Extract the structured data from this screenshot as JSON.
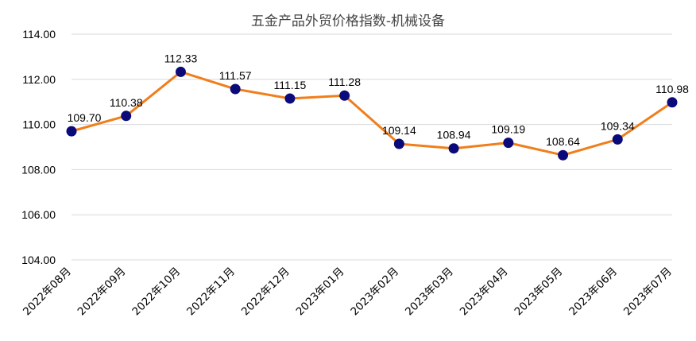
{
  "chart_data": {
    "type": "line",
    "title": "五金产品外贸价格指数-机械设备",
    "xlabel": "",
    "ylabel": "",
    "categories": [
      "2022年08月",
      "2022年09月",
      "2022年10月",
      "2022年11月",
      "2022年12月",
      "2023年01月",
      "2023年02月",
      "2023年03月",
      "2023年04月",
      "2023年05月",
      "2023年06月",
      "2023年07月"
    ],
    "series": [
      {
        "values": [
          109.7,
          110.38,
          112.33,
          111.57,
          111.15,
          111.28,
          109.14,
          108.94,
          109.19,
          108.64,
          109.34,
          110.98
        ]
      }
    ],
    "data_labels": [
      "109.70",
      "110.38",
      "112.33",
      "111.57",
      "111.15",
      "111.28",
      "109.14",
      "108.94",
      "109.19",
      "108.64",
      "109.34",
      "110.98"
    ],
    "ylim": [
      104,
      114
    ],
    "yticks": [
      "104.00",
      "106.00",
      "108.00",
      "110.00",
      "112.00",
      "114.00"
    ],
    "grid": true,
    "legend": "none",
    "colors": {
      "line": "#f07e1b",
      "marker": "#0a0a7a",
      "grid": "#d9d9d9"
    }
  }
}
